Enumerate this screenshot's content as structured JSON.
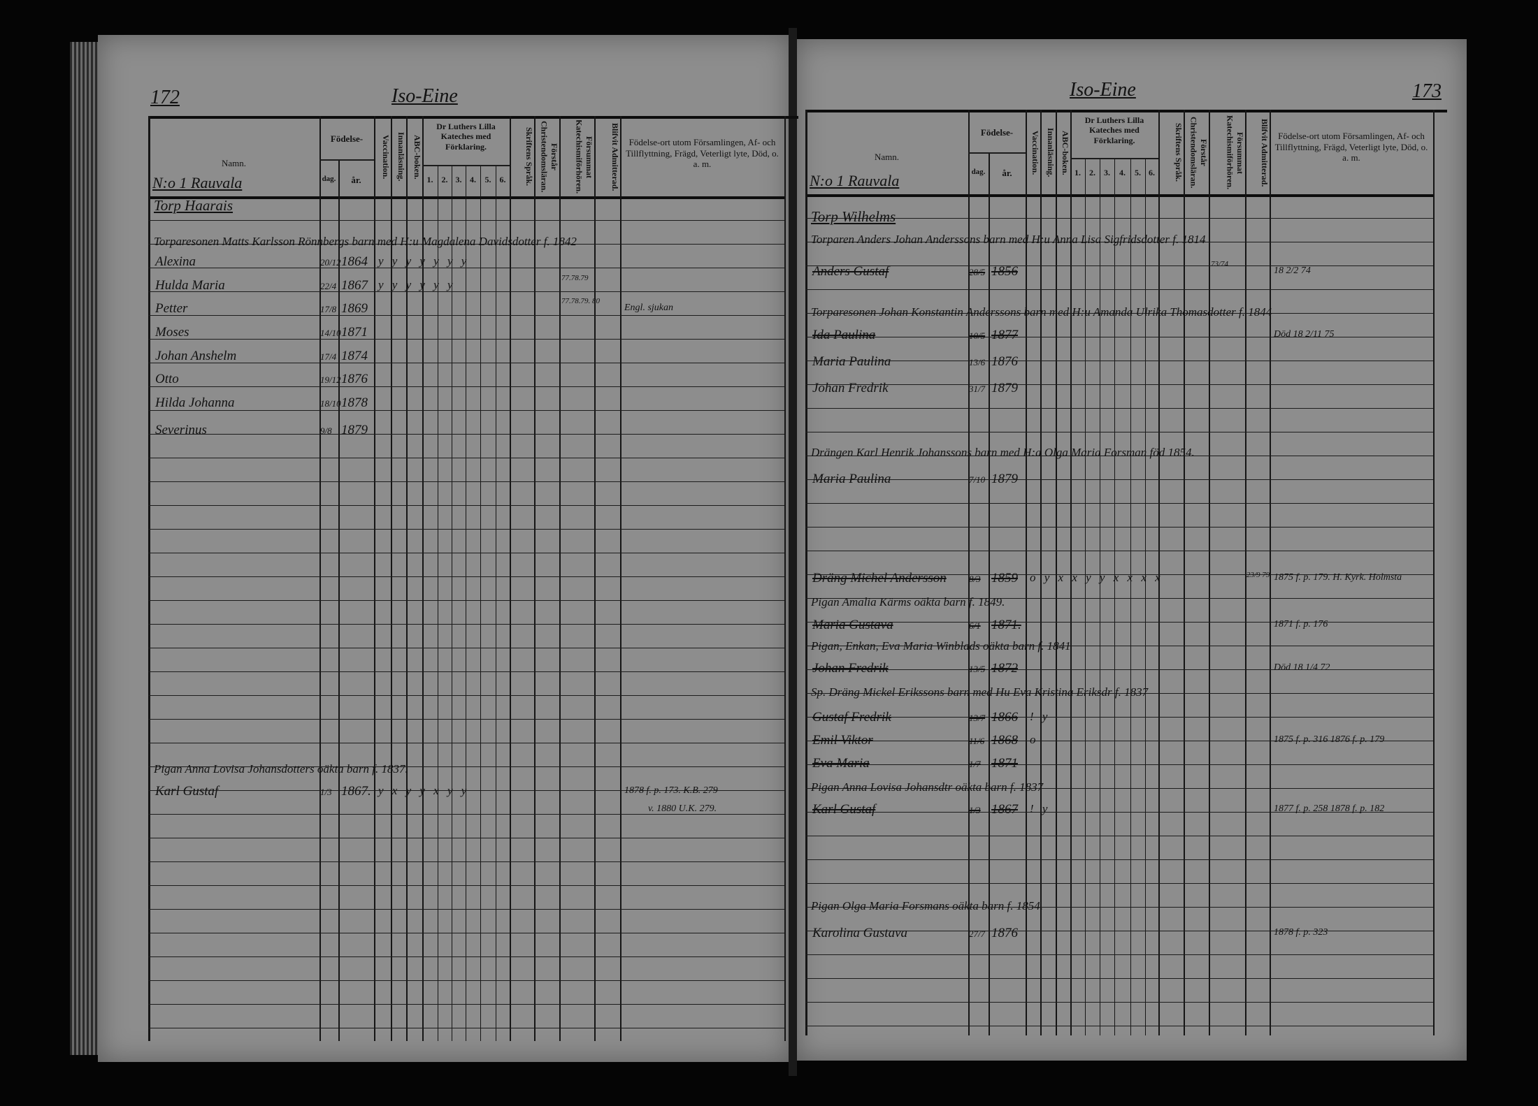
{
  "header": {
    "namn": "Namn.",
    "fodelse": "Födelse-",
    "dag": "dag.",
    "ar": "år.",
    "vaccination": "Vaccination.",
    "innanlasning": "Innanläsning.",
    "abc": "ABC-boken.",
    "katekes": "Dr Luthers Lilla Kateches med Förklaring.",
    "nums": [
      "1.",
      "2.",
      "3.",
      "4.",
      "5.",
      "6."
    ],
    "skriftens": "Skriftens Språk.",
    "forstar": "Förstår Christendomsläran.",
    "forsummat": "Försummat Katechismiförhören.",
    "blifvit": "Blifvit Admitterad.",
    "fodelseort": "Födelse-ort utom Församlingen, Af- och Tillflyttning, Frägd, Veterligt lyte, Död, o. a. m."
  },
  "pages": {
    "left": {
      "page_number": "172",
      "title": "Iso-Eine",
      "section": "N:o 1 Rauvala",
      "entries": [
        {
          "kind": "place",
          "name": "Torp Haarais"
        },
        {
          "kind": "household",
          "name": "Torparesonen Matts Karlsson Rönnbergs barn med H:u Magdalena Davidsdotter f. 1842"
        },
        {
          "kind": "child",
          "name": "Alexina",
          "day": "20/12",
          "year": "1864",
          "marks": "y y y y y y y"
        },
        {
          "kind": "child",
          "name": "Hulda Maria",
          "day": "22/4",
          "year": "1867",
          "marks": "y y y y y y",
          "forsummat": "77.78.79"
        },
        {
          "kind": "child",
          "name": "Petter",
          "day": "17/8",
          "year": "1869",
          "forsummat": "77.78.79. 80",
          "note": "Engl. sjukan"
        },
        {
          "kind": "child",
          "name": "Moses",
          "day": "14/10",
          "year": "1871"
        },
        {
          "kind": "child",
          "name": "Johan Anshelm",
          "day": "17/4",
          "year": "1874"
        },
        {
          "kind": "child",
          "name": "Otto",
          "day": "19/12",
          "year": "1876"
        },
        {
          "kind": "child",
          "name": "Hilda Johanna",
          "day": "18/10",
          "year": "1878"
        },
        {
          "kind": "child",
          "name": "Severinus",
          "day": "9/8",
          "year": "1879"
        },
        {
          "kind": "household",
          "name": "Pigan Anna Lovisa Johansdotters oäkta barn f. 1837."
        },
        {
          "kind": "child",
          "name": "Karl Gustaf",
          "day": "1/3",
          "year": "1867.",
          "marks": "y x y y x y y",
          "note": "1878 f. p. 173. K.B. 279",
          "note2": "v. 1880 U.K. 279."
        }
      ]
    },
    "right": {
      "page_number": "173",
      "title": "Iso-Eine",
      "section": "N:o 1 Rauvala",
      "entries": [
        {
          "kind": "place",
          "name": "Torp Wilhelms"
        },
        {
          "kind": "household",
          "name": "Torparen Anders Johan Anderssons barn med H:u Anna Lisa Sigfridsdotter f. 1814"
        },
        {
          "kind": "child",
          "name": "Anders Gustaf",
          "day": "28/5",
          "year": "1856",
          "struck": true,
          "forsummat": "73/74",
          "note": "18 2/2 74"
        },
        {
          "kind": "household",
          "name": "Torparesonen Johan Konstantin Anderssons barn med H:u Amanda Ulrika Thomasdotter f. 1844"
        },
        {
          "kind": "child",
          "name": "Ida Paulina",
          "day": "10/5",
          "year": "1877",
          "struck": true,
          "note": "Död 18 2/11 75"
        },
        {
          "kind": "child",
          "name": "Maria Paulina",
          "day": "13/6",
          "year": "1876"
        },
        {
          "kind": "child",
          "name": "Johan Fredrik",
          "day": "31/7",
          "year": "1879"
        },
        {
          "kind": "household",
          "name": "Drängen Karl Henrik Johanssons barn med H:a Olga Maria Forsman föd 1854."
        },
        {
          "kind": "child",
          "name": "Maria Paulina",
          "day": "7/10",
          "year": "1879"
        },
        {
          "kind": "child",
          "name": "Dräng Michel Andersson",
          "day": "8/3",
          "year": "1859",
          "struck": true,
          "marks": "o y x x y y x x x x",
          "blifvit": "23/9 79",
          "note": "1875 f. p. 179. H. Kyrk. Holmsta"
        },
        {
          "kind": "household",
          "name": "Pigan Amalia Kärms oäkta barn f. 1849."
        },
        {
          "kind": "child",
          "name": "Maria Gustava",
          "day": "6/1",
          "year": "1871.",
          "struck": true,
          "note": "1871 f. p. 176"
        },
        {
          "kind": "household",
          "name": "Pigan, Enkan, Eva Maria Winblads oäkta barn f. 1841"
        },
        {
          "kind": "child",
          "name": "Johan Fredrik",
          "day": "13/5",
          "year": "1872",
          "struck": true,
          "note": "Död 18 1/4 72"
        },
        {
          "kind": "household",
          "name": "Sp. Dräng Mickel Erikssons barn med Hu Eva Kristina Eriksdr f. 1837"
        },
        {
          "kind": "child",
          "name": "Gustaf Fredrik",
          "day": "13/7",
          "year": "1866",
          "struck": true,
          "marks": "! y"
        },
        {
          "kind": "child",
          "name": "Emil Viktor",
          "day": "11/6",
          "year": "1868",
          "struck": true,
          "marks": "o",
          "note": "1875 f. p. 316 1876 f. p. 179"
        },
        {
          "kind": "child",
          "name": "Eva Maria",
          "day": "1/7",
          "year": "1871",
          "struck": true
        },
        {
          "kind": "household",
          "name": "Pigan Anna Lovisa Johansdtr oäkta barn f. 1837"
        },
        {
          "kind": "child",
          "name": "Karl Gustaf",
          "day": "1/3",
          "year": "1867",
          "struck": true,
          "marks": "! y",
          "note": "1877 f. p. 258 1878 f. p. 182"
        },
        {
          "kind": "household",
          "name": "Pigan Olga Maria Forsmans oäkta barn f. 1854."
        },
        {
          "kind": "child",
          "name": "Karolina Gustava",
          "day": "27/7",
          "year": "1876",
          "note": "1878 f. p. 323"
        }
      ]
    }
  }
}
